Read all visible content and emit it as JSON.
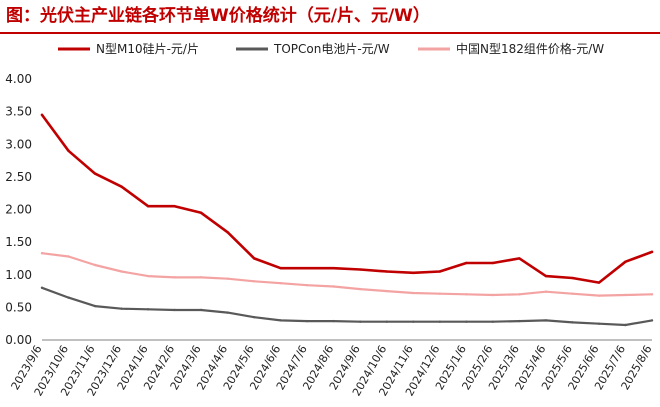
{
  "title": "图：光伏主产业链各环节单W价格统计（元/片、元/W）",
  "chart_data": {
    "type": "line",
    "title": "图：光伏主产业链各环节单W价格统计（元/片、元/W）",
    "ylim": [
      0,
      4.0
    ],
    "yticks": [
      "0.00",
      "0.50",
      "1.00",
      "1.50",
      "2.00",
      "2.50",
      "3.00",
      "3.50",
      "4.00"
    ],
    "grid": false,
    "legend_position": "top",
    "x": [
      "2023/9/6",
      "2023/10/6",
      "2023/11/6",
      "2023/12/6",
      "2024/1/6",
      "2024/2/6",
      "2024/3/6",
      "2024/4/6",
      "2024/5/6",
      "2024/6/6",
      "2024/7/6",
      "2024/8/6",
      "2024/9/6",
      "2024/10/6",
      "2024/11/6",
      "2024/12/6",
      "2025/1/6",
      "2025/2/6",
      "2025/3/6",
      "2025/4/6",
      "2025/5/6",
      "2025/6/6",
      "2025/7/6",
      "2025/8/6"
    ],
    "series": [
      {
        "name": "N型M10硅片-元/片",
        "color": "#c00000",
        "values": [
          3.45,
          2.9,
          2.55,
          2.35,
          2.05,
          2.05,
          1.95,
          1.65,
          1.25,
          1.1,
          1.1,
          1.1,
          1.08,
          1.05,
          1.03,
          1.05,
          1.18,
          1.18,
          1.25,
          0.98,
          0.95,
          0.88,
          1.2,
          1.35
        ]
      },
      {
        "name": "TOPCon电池片-元/W",
        "color": "#595959",
        "values": [
          0.8,
          0.65,
          0.52,
          0.48,
          0.47,
          0.46,
          0.46,
          0.42,
          0.35,
          0.3,
          0.29,
          0.29,
          0.28,
          0.28,
          0.28,
          0.28,
          0.28,
          0.28,
          0.29,
          0.3,
          0.27,
          0.25,
          0.23,
          0.3
        ]
      },
      {
        "name": "中国N型182组件价格-元/W",
        "color": "#f4a3a3",
        "values": [
          1.33,
          1.28,
          1.15,
          1.05,
          0.98,
          0.96,
          0.96,
          0.94,
          0.9,
          0.87,
          0.84,
          0.82,
          0.78,
          0.75,
          0.72,
          0.71,
          0.7,
          0.69,
          0.7,
          0.74,
          0.71,
          0.68,
          0.69,
          0.7
        ]
      }
    ]
  }
}
